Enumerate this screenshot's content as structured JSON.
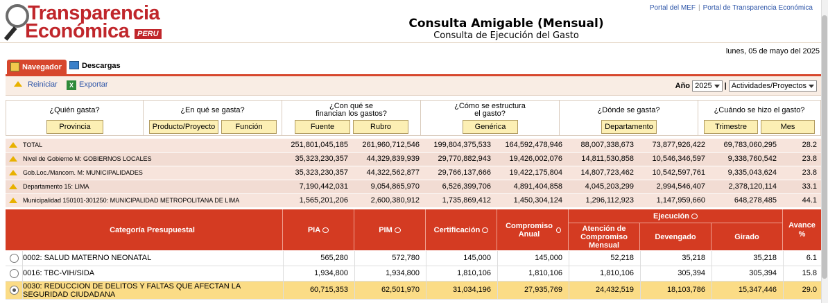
{
  "header": {
    "logo_line1": "Transparencia",
    "logo_line2": "Económica",
    "logo_peru": "PERU",
    "title": "Consulta Amigable (Mensual)",
    "subtitle": "Consulta de Ejecución del Gasto",
    "links": [
      "Portal del MEF",
      "Portal de Transparencia Económica"
    ],
    "link_separator": "|",
    "date": "lunes, 05 de mayo del 2025"
  },
  "tabs": {
    "active": "Navegador",
    "inactive": "Descargas"
  },
  "toolbar": {
    "reiniciar": "Reiniciar",
    "exportar": "Exportar",
    "exportar_icon_text": "X",
    "anio_label": "Año",
    "anio_value": "2025",
    "separator": "|",
    "view_value": "Actividades/Proyectos"
  },
  "questions": [
    {
      "q": "¿Quién gasta?",
      "buttons": [
        "Provincia"
      ]
    },
    {
      "q": "¿En qué se gasta?",
      "buttons": [
        "Producto/Proyecto",
        "Función"
      ]
    },
    {
      "q": "¿Con qué se financian los gastos?",
      "q1": "¿Con qué se",
      "q2": "financian los gastos?",
      "buttons": [
        "Fuente",
        "Rubro"
      ]
    },
    {
      "q1": "¿Cómo se estructura",
      "q2": "el gasto?",
      "buttons": [
        "Genérica"
      ]
    },
    {
      "q": "¿Dónde se gasta?",
      "buttons": [
        "Departamento"
      ]
    },
    {
      "q": "¿Cuándo se hizo el gasto?",
      "buttons": [
        "Trimestre",
        "Mes"
      ]
    }
  ],
  "summary": [
    {
      "label": "TOTAL",
      "values": [
        "251,801,045,185",
        "261,960,712,546",
        "199,804,375,533",
        "164,592,478,946",
        "88,007,338,673",
        "73,877,926,422",
        "69,783,060,295",
        "28.2"
      ]
    },
    {
      "label": "Nivel de Gobierno M: GOBIERNOS LOCALES",
      "values": [
        "35,323,230,357",
        "44,329,839,939",
        "29,770,882,943",
        "19,426,002,076",
        "14,811,530,858",
        "10,546,346,597",
        "9,338,760,542",
        "23.8"
      ]
    },
    {
      "label": "Gob.Loc./Mancom. M: MUNICIPALIDADES",
      "values": [
        "35,323,230,357",
        "44,322,562,877",
        "29,766,137,666",
        "19,422,175,804",
        "14,807,723,462",
        "10,542,597,761",
        "9,335,043,624",
        "23.8"
      ]
    },
    {
      "label": "Departamento 15: LIMA",
      "values": [
        "7,190,442,031",
        "9,054,865,970",
        "6,526,399,706",
        "4,891,404,858",
        "4,045,203,299",
        "2,994,546,407",
        "2,378,120,114",
        "33.1"
      ]
    },
    {
      "label": "Municipalidad 150101-301250: MUNICIPALIDAD METROPOLITANA DE LIMA",
      "values": [
        "1,565,201,206",
        "2,600,380,912",
        "1,735,869,412",
        "1,450,304,124",
        "1,296,112,923",
        "1,147,959,660",
        "648,278,485",
        "44.1"
      ]
    }
  ],
  "table": {
    "headers": {
      "categoria": "Categoría Presupuestal",
      "pia": "PIA",
      "pim": "PIM",
      "certificacion": "Certificación",
      "compromiso": "Compromiso Anual",
      "ejecucion": "Ejecución",
      "atencion": "Atención de Compromiso Mensual",
      "devengado": "Devengado",
      "girado": "Girado",
      "avance": "Avance %"
    },
    "rows": [
      {
        "cat": "0002: SALUD MATERNO NEONATAL",
        "values": [
          "565,280",
          "572,780",
          "145,000",
          "145,000",
          "52,218",
          "35,218",
          "35,218",
          "6.1"
        ],
        "selected": false
      },
      {
        "cat": "0016: TBC-VIH/SIDA",
        "values": [
          "1,934,800",
          "1,934,800",
          "1,810,106",
          "1,810,106",
          "1,810,106",
          "305,394",
          "305,394",
          "15.8"
        ],
        "selected": false
      },
      {
        "cat": "0030: REDUCCION DE DELITOS Y FALTAS QUE AFECTAN LA SEGURIDAD CIUDADANA",
        "values": [
          "60,715,353",
          "62,501,970",
          "31,034,196",
          "27,935,769",
          "24,432,519",
          "18,103,786",
          "15,347,446",
          "29.0"
        ],
        "selected": true
      }
    ]
  }
}
